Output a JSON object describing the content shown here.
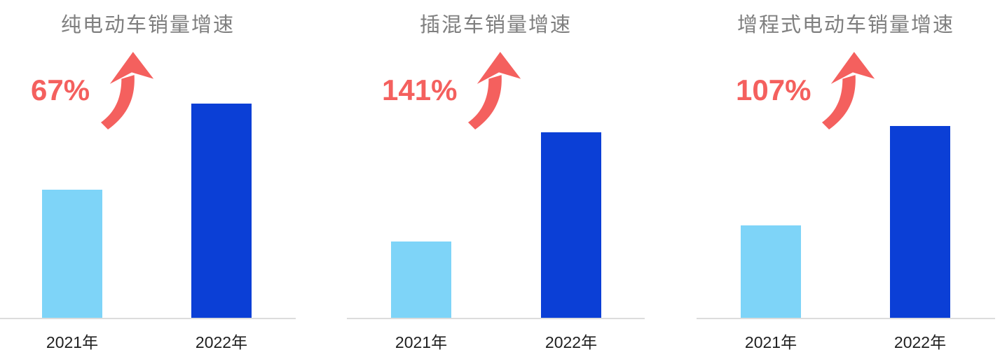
{
  "page": {
    "background": "#ffffff",
    "description_labels": {
      "year_axis_note": "x-axis shows model years"
    }
  },
  "colors": {
    "growth": "#F4605E",
    "title": "#7F7F7F",
    "axis_line": "#DCDCDC",
    "label": "#1F1F1F",
    "bar_2021": "#7ED4F8",
    "bar_2022": "#0B3FD6"
  },
  "icons": {
    "growth_arrow": "curved-swoosh-up-arrow"
  },
  "chart_data": [
    {
      "type": "bar",
      "title": "纯电动车销量增速",
      "growth_label": "67%",
      "growth_value_pct": 67,
      "categories": [
        "2021年",
        "2022年"
      ],
      "values": [
        100,
        167
      ],
      "values_note": "relative sales index, 2021 = 100; 2022 bar = 1.67x of 2021",
      "bar_colors": [
        "#7ED4F8",
        "#0B3FD6"
      ],
      "xlabel": "",
      "ylabel": "",
      "grid": false,
      "legend": false
    },
    {
      "type": "bar",
      "title": "插混车销量增速",
      "growth_label": "141%",
      "growth_value_pct": 141,
      "categories": [
        "2021年",
        "2022年"
      ],
      "values": [
        100,
        241
      ],
      "values_note": "relative sales index, 2021 = 100; 2022 bar = 2.41x of 2021",
      "bar_colors": [
        "#7ED4F8",
        "#0B3FD6"
      ],
      "xlabel": "",
      "ylabel": "",
      "grid": false,
      "legend": false
    },
    {
      "type": "bar",
      "title": "增程式电动车销量增速",
      "growth_label": "107%",
      "growth_value_pct": 107,
      "categories": [
        "2021年",
        "2022年"
      ],
      "values": [
        100,
        207
      ],
      "values_note": "relative sales index, 2021 = 100; 2022 bar = 2.07x of 2021",
      "bar_colors": [
        "#7ED4F8",
        "#0B3FD6"
      ],
      "xlabel": "",
      "ylabel": "",
      "grid": false,
      "legend": false
    }
  ]
}
